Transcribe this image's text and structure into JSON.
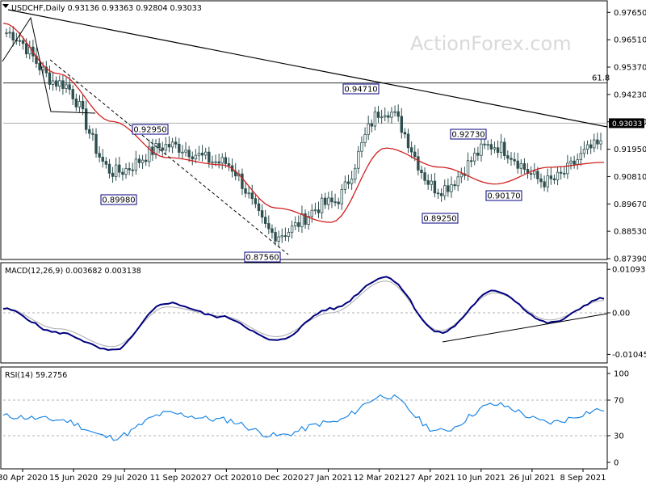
{
  "chart_data": [
    {
      "type": "candlestick",
      "panel": "price",
      "header": "USDCHF,Daily  0.93136 0.93363 0.92804 0.93033",
      "last_price": "0.93033",
      "y_ticks": [
        "0.97650",
        "0.96510",
        "0.95370",
        "0.94230",
        "0.93090",
        "0.91950",
        "0.90810",
        "0.89670",
        "0.88530",
        "0.87390"
      ],
      "ylim": [
        0.8739,
        0.9803
      ],
      "x_ticks": [
        "30 Apr 2020",
        "15 Jun 2020",
        "29 Jul 2020",
        "11 Sep 2020",
        "27 Oct 2020",
        "10 Dec 2020",
        "27 Jan 2021",
        "12 Mar 2021",
        "27 Apr 2021",
        "10 Jun 2021",
        "26 Jul 2021",
        "8 Sep 2021"
      ],
      "annotations": [
        {
          "text": "0.89980",
          "value": 0.8998
        },
        {
          "text": "0.92950",
          "value": 0.9295
        },
        {
          "text": "0.87560",
          "value": 0.8756
        },
        {
          "text": "0.94710",
          "value": 0.9471
        },
        {
          "text": "0.89250",
          "value": 0.8925
        },
        {
          "text": "0.92730",
          "value": 0.9273
        },
        {
          "text": "0.90170",
          "value": 0.9017
        }
      ],
      "fib_label": "61.8",
      "fib_level": 0.9471,
      "series": [
        {
          "name": "close",
          "x": [
            "30 Apr 2020",
            "15 Jun 2020",
            "29 Jul 2020",
            "11 Sep 2020",
            "27 Oct 2020",
            "10 Dec 2020",
            "27 Jan 2021",
            "12 Mar 2021",
            "27 Apr 2021",
            "10 Jun 2021",
            "26 Jul 2021",
            "8 Sep 2021"
          ],
          "values": [
            0.968,
            0.947,
            0.91,
            0.921,
            0.914,
            0.884,
            0.897,
            0.936,
            0.903,
            0.921,
            0.906,
            0.921
          ]
        },
        {
          "name": "moving-average",
          "values": [
            0.972,
            0.951,
            0.931,
            0.916,
            0.913,
            0.895,
            0.889,
            0.92,
            0.912,
            0.905,
            0.912,
            0.914
          ]
        }
      ]
    },
    {
      "type": "line",
      "panel": "macd",
      "header": "MACD(12,26,9) 0.003682 0.003138",
      "y_ticks": [
        "0.010935",
        "0.00",
        "-0.010459"
      ],
      "ylim": [
        -0.0122,
        0.0122
      ],
      "series": [
        {
          "name": "macd",
          "values": [
            0.001,
            -0.005,
            -0.0095,
            0.0025,
            -0.001,
            -0.007,
            0.001,
            0.009,
            -0.005,
            0.0055,
            -0.0025,
            0.0036
          ]
        },
        {
          "name": "signal",
          "values": [
            0.0012,
            -0.004,
            -0.0085,
            0.0015,
            -0.0008,
            -0.006,
            0.0,
            0.008,
            -0.0045,
            0.005,
            -0.0018,
            0.0031
          ]
        }
      ]
    },
    {
      "type": "line",
      "panel": "rsi",
      "header": "RSI(14) 59.2756",
      "y_ticks": [
        "100",
        "70",
        "30",
        "0"
      ],
      "ylim": [
        0,
        100
      ],
      "series": [
        {
          "name": "rsi",
          "values": [
            52,
            48,
            28,
            55,
            48,
            30,
            45,
            75,
            35,
            65,
            45,
            59.3
          ]
        }
      ]
    }
  ],
  "watermark": "ActionForex.com",
  "colors": {
    "candle": "#2f4f4f",
    "ma": "#d02020",
    "macd": "#000080",
    "signal": "#aaaaaa",
    "rsi": "#1e88e5",
    "grid": "#b0b0b0",
    "label_border": "#000080"
  }
}
